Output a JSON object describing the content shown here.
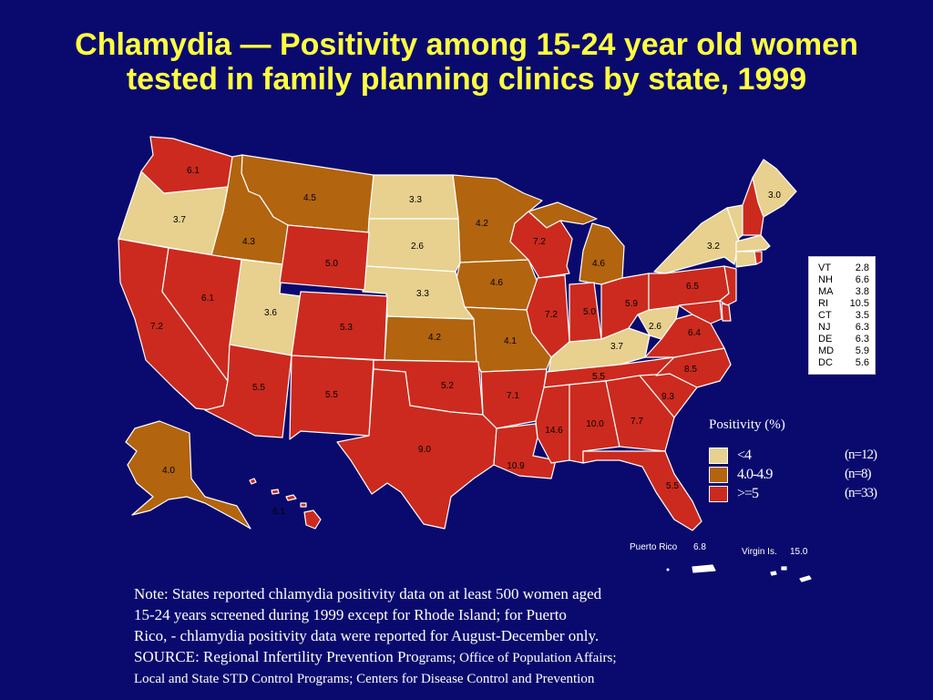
{
  "title": "Chlamydia  —  Positivity among 15-24 year old women tested in family planning clinics by state, 1999",
  "colors": {
    "low": "#e8d08e",
    "mid": "#b2640f",
    "high": "#cc2a1e",
    "background": "#0a0a6e",
    "title": "#ffff40"
  },
  "states": {
    "WA": "6.1",
    "OR": "3.7",
    "CA": "7.2",
    "NV": "6.1",
    "ID": "4.3",
    "MT": "4.5",
    "WY": "5.0",
    "UT": "3.6",
    "CO": "5.3",
    "AZ": "5.5",
    "NM": "5.5",
    "ND": "3.3",
    "SD": "2.6",
    "NE": "3.3",
    "KS": "4.2",
    "OK": "5.2",
    "TX": "9.0",
    "MN": "4.2",
    "IA": "4.6",
    "MO": "4.1",
    "AR": "7.1",
    "LA": "10.9",
    "WI": "7.2",
    "IL": "7.2",
    "MI": "4.6",
    "IN": "5.0",
    "OH": "5.9",
    "KY": "3.7",
    "TN": "5.5",
    "MS": "14.6",
    "AL": "10.0",
    "GA": "7.7",
    "FL": "5.5",
    "SC": "9.3",
    "NC": "8.5",
    "VA": "6.4",
    "WV": "2.6",
    "PA": "6.5",
    "NY": "3.2",
    "ME": "3.0",
    "AK": "4.0",
    "HI": "6.1"
  },
  "inset": [
    {
      "state": "VT",
      "value": "2.8"
    },
    {
      "state": "NH",
      "value": "6.6"
    },
    {
      "state": "MA",
      "value": "3.8"
    },
    {
      "state": "RI",
      "value": "10.5"
    },
    {
      "state": "CT",
      "value": "3.5"
    },
    {
      "state": "NJ",
      "value": "6.3"
    },
    {
      "state": "DE",
      "value": "6.3"
    },
    {
      "state": "MD",
      "value": "5.9"
    },
    {
      "state": "DC",
      "value": "5.6"
    }
  ],
  "territories": {
    "puerto_rico": {
      "label": "Puerto Rico",
      "value": "6.8"
    },
    "virgin_islands": {
      "label": "Virgin Is.",
      "value": "15.0"
    }
  },
  "legend": {
    "title": "Positivity (%)",
    "items": [
      {
        "label": "<4",
        "count": "(n=12)",
        "color": "#e8d08e"
      },
      {
        "label": "4.0-4.9",
        "count": "(n=8)",
        "color": "#b2640f"
      },
      {
        "label": ">=5",
        "count": "(n=33)",
        "color": "#cc2a1e"
      }
    ]
  },
  "note": {
    "line1": "Note:  States reported chlamydia positivity data on at least 500 women aged",
    "line2": "15-24 years screened during 1999 except for Rhode Island; for Puerto",
    "line3": "Rico, - chlamydia positivity data were reported for August-December only.",
    "source_a": "SOURCE: Regional Infertility Prevention Pro",
    "source_b": "grams; Office of Population Affairs;",
    "line5": "Local and State STD Control Programs; Centers for Disease Control and Prevention"
  }
}
